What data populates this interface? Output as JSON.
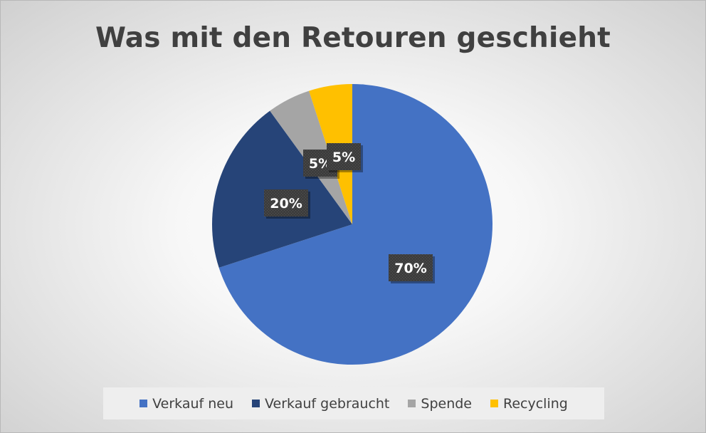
{
  "chart_data": {
    "type": "pie",
    "title": "Was mit den Retouren geschieht",
    "slices": [
      {
        "name": "Verkauf neu",
        "value": 70,
        "label": "70%",
        "color": "#4472c4"
      },
      {
        "name": "Verkauf gebraucht",
        "value": 20,
        "label": "20%",
        "color": "#264478"
      },
      {
        "name": "Spende",
        "value": 5,
        "label": "5%",
        "color": "#a5a5a5"
      },
      {
        "name": "Recycling",
        "value": 5,
        "label": "5%",
        "color": "#ffc000"
      }
    ],
    "start": "12 o'clock",
    "direction": "clockwise",
    "legend_position": "bottom",
    "label_box_color": "#404040"
  }
}
